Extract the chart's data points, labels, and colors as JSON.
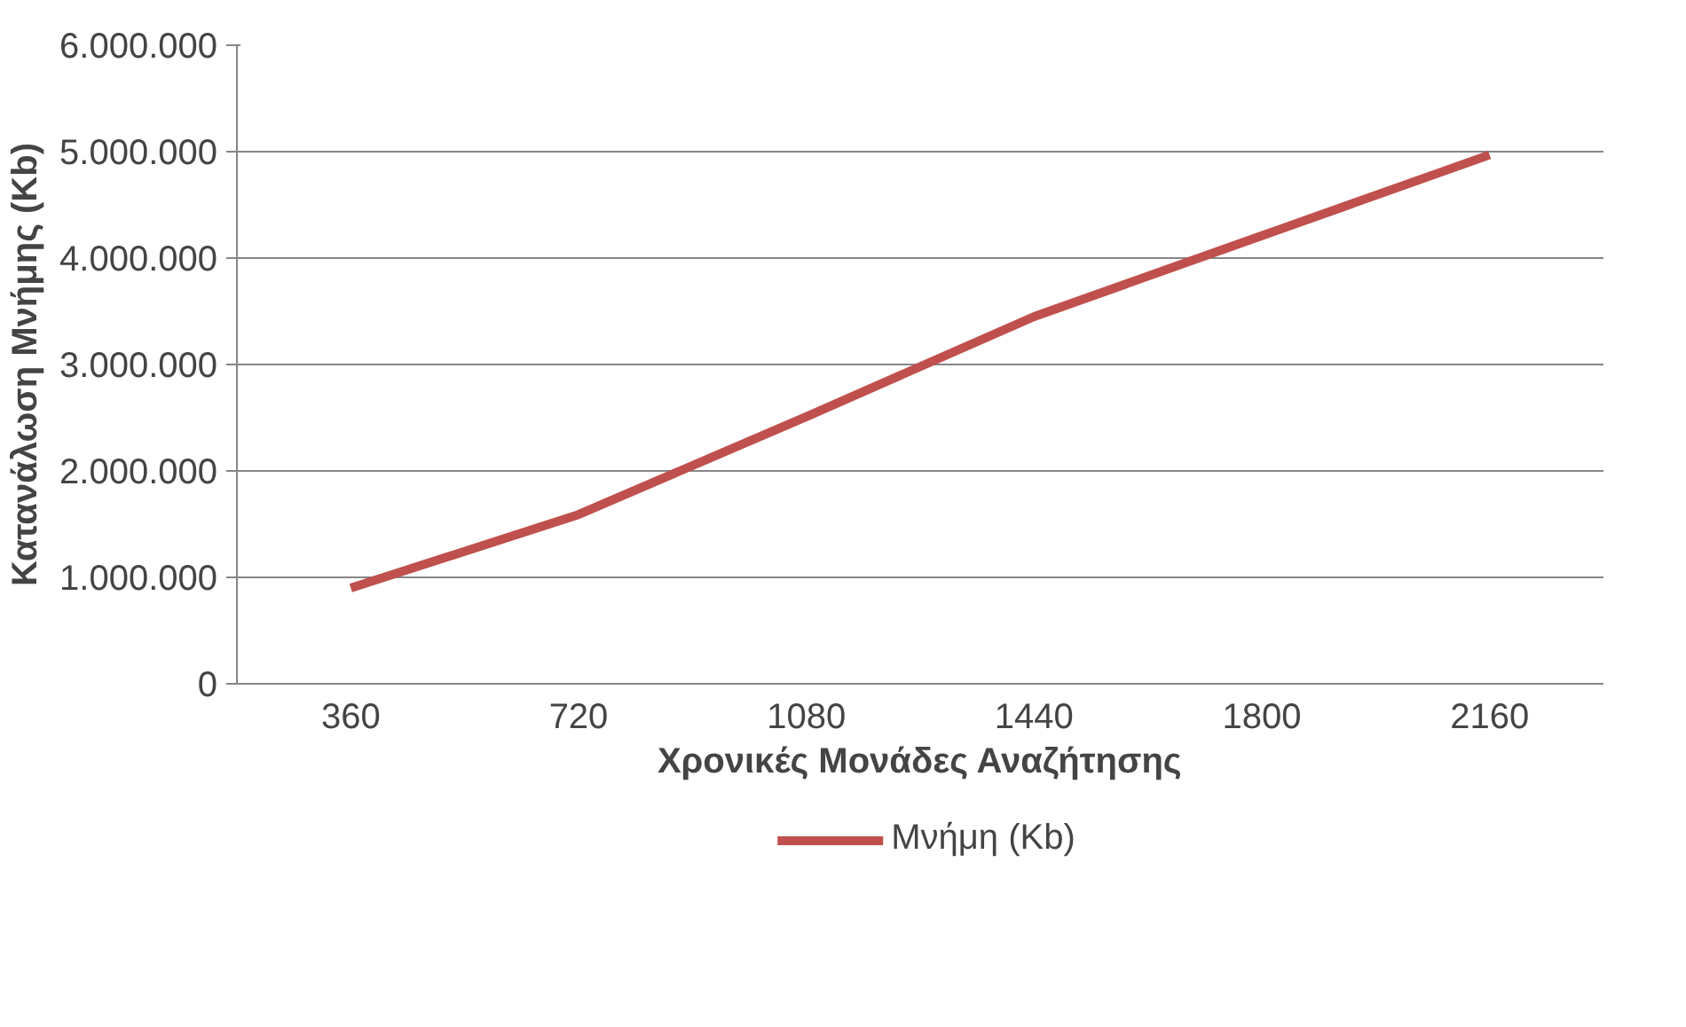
{
  "chart_data": {
    "type": "line",
    "xlabel": "Χρονικές Μονάδες Αναζήτησης",
    "ylabel": "Κατανάλωση Μνήμης (Kb)",
    "categories": [
      "360",
      "720",
      "1080",
      "1440",
      "1800",
      "2160"
    ],
    "series": [
      {
        "name": "Μνήμη (Kb)",
        "color": "#c0504d",
        "values": [
          900000,
          1590000,
          2510000,
          3450000,
          4210000,
          4970000
        ]
      }
    ],
    "ylim": [
      0,
      6000000
    ],
    "yticks": [
      {
        "value": 0,
        "label": "0"
      },
      {
        "value": 1000000,
        "label": "1.000.000"
      },
      {
        "value": 2000000,
        "label": "2.000.000"
      },
      {
        "value": 3000000,
        "label": "3.000.000"
      },
      {
        "value": 4000000,
        "label": "4.000.000"
      },
      {
        "value": 5000000,
        "label": "5.000.000"
      },
      {
        "value": 6000000,
        "label": "6.000.000"
      }
    ],
    "grid": "y",
    "legend": "bottom",
    "marker": "none",
    "line_style": "solid"
  }
}
